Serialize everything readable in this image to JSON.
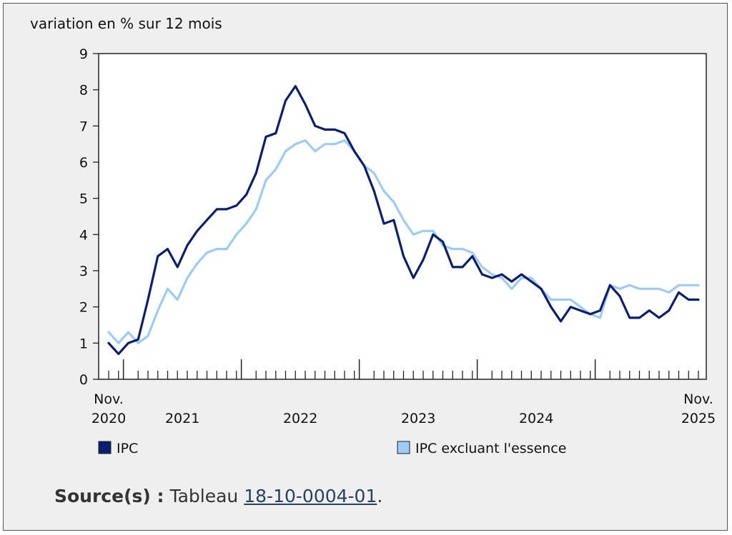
{
  "chart_data": {
    "type": "line",
    "ylabel": "variation en % sur 12 mois",
    "ylim": [
      0,
      9
    ],
    "yticks": [
      "0",
      "1",
      "2",
      "3",
      "4",
      "5",
      "6",
      "7",
      "8",
      "9"
    ],
    "x_labels": {
      "first": [
        "Nov.",
        "2020"
      ],
      "years": [
        "2021",
        "2022",
        "2023",
        "2024"
      ],
      "last": [
        "Nov.",
        "2025"
      ]
    },
    "x_start": "2020-11",
    "x_end": "2025-11",
    "series": [
      {
        "name": "IPC",
        "color": "#0b1f6e",
        "values": [
          1.0,
          0.7,
          1.0,
          1.1,
          2.2,
          3.4,
          3.6,
          3.1,
          3.7,
          4.1,
          4.4,
          4.7,
          4.7,
          4.8,
          5.1,
          5.7,
          6.7,
          6.8,
          7.7,
          8.1,
          7.6,
          7.0,
          6.9,
          6.9,
          6.8,
          6.3,
          5.9,
          5.2,
          4.3,
          4.4,
          3.4,
          2.8,
          3.3,
          4.0,
          3.8,
          3.1,
          3.1,
          3.4,
          2.9,
          2.8,
          2.9,
          2.7,
          2.9,
          2.7,
          2.5,
          2.0,
          1.6,
          2.0,
          1.9,
          1.8,
          1.9,
          2.6,
          2.3,
          1.7,
          1.7,
          1.9,
          1.7,
          1.9,
          2.4,
          2.2,
          2.2
        ]
      },
      {
        "name": "IPC excluant l'essence",
        "color": "#9ecbf5",
        "values": [
          1.3,
          1.0,
          1.3,
          1.0,
          1.2,
          1.9,
          2.5,
          2.2,
          2.8,
          3.2,
          3.5,
          3.6,
          3.6,
          4.0,
          4.3,
          4.7,
          5.5,
          5.8,
          6.3,
          6.5,
          6.6,
          6.3,
          6.5,
          6.5,
          6.6,
          6.3,
          5.9,
          5.7,
          5.2,
          4.9,
          4.4,
          4.0,
          4.1,
          4.1,
          3.7,
          3.6,
          3.6,
          3.5,
          3.1,
          2.9,
          2.8,
          2.5,
          2.8,
          2.8,
          2.5,
          2.2,
          2.2,
          2.2,
          2.0,
          1.8,
          1.7,
          2.6,
          2.5,
          2.6,
          2.5,
          2.5,
          2.5,
          2.4,
          2.6,
          2.6,
          2.6
        ]
      }
    ],
    "legend_placement": "bottom"
  },
  "source": {
    "label": "Source(s) :",
    "prefix": "Tableau",
    "link": "18-10-0004-01",
    "suffix": "."
  }
}
